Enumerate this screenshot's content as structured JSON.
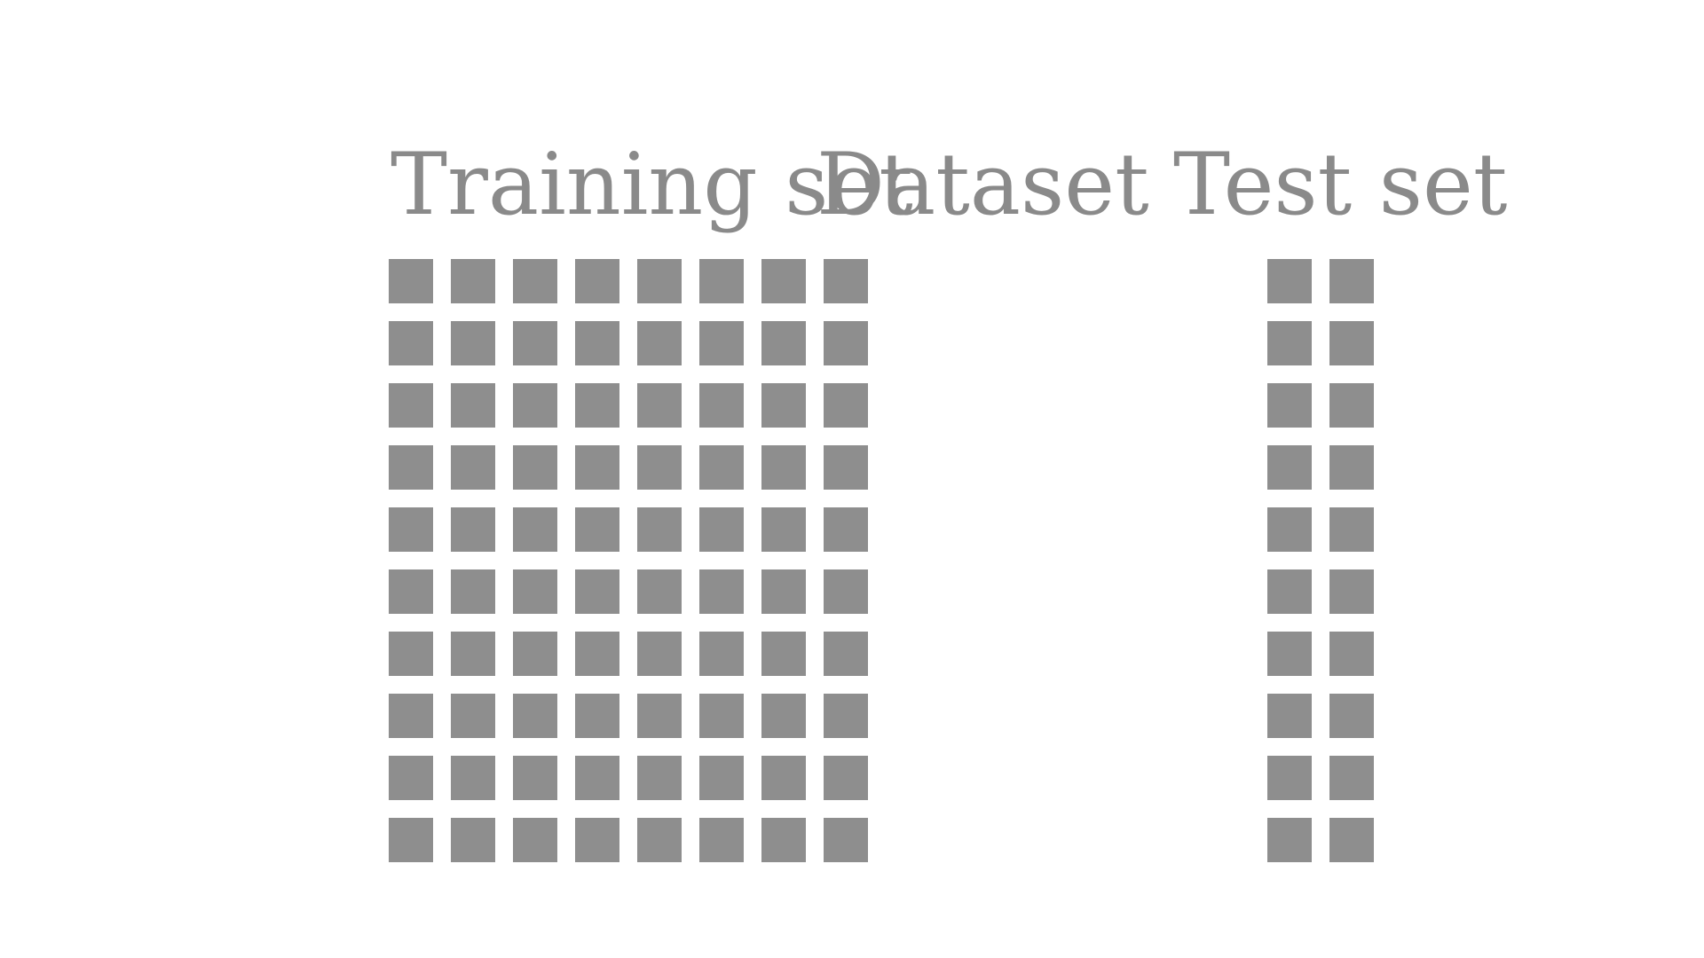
{
  "labels": {
    "training": "Training set",
    "dataset": "Dataset",
    "test": "Test set"
  },
  "colors": {
    "cell": "#8e8e8e",
    "text": "#8a8a8a"
  },
  "training_grid": {
    "rows": 10,
    "cols": 8
  },
  "test_grid": {
    "rows": 10,
    "cols": 2
  }
}
